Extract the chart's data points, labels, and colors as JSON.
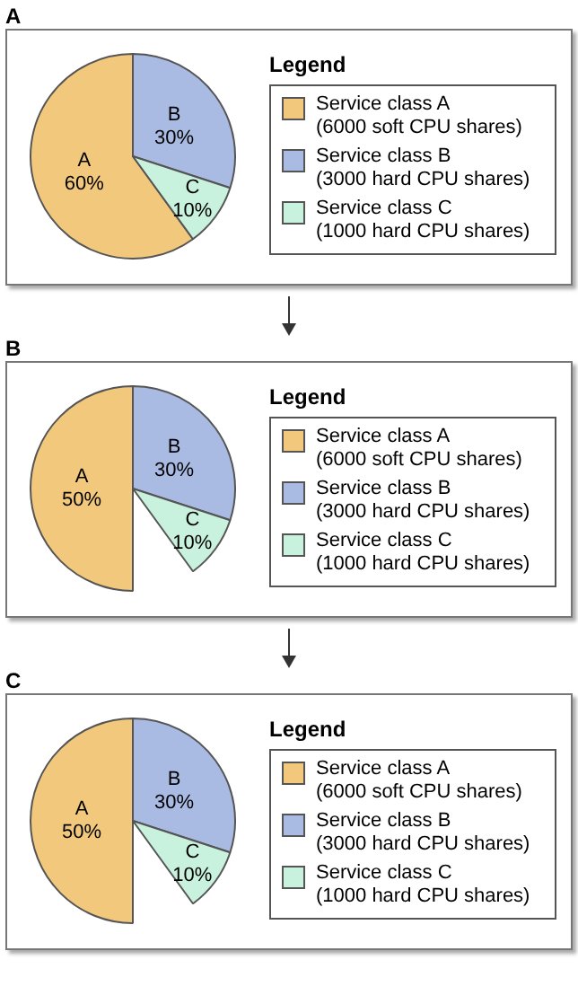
{
  "chart_data": [
    {
      "type": "pie",
      "title": "A",
      "legend_title": "Legend",
      "legend": "right",
      "categories": [
        "Service class A\n(6000 soft CPU shares)",
        "Service class B\n(3000 hard CPU shares)",
        "Service class C\n(1000 hard CPU shares)"
      ],
      "values": [
        60,
        30,
        10
      ],
      "colors": [
        "#f2c97c",
        "#a9bae3",
        "#c8f2de"
      ],
      "value_labels": [
        "A 60%",
        "B 30%",
        "C 10%"
      ]
    },
    {
      "type": "pie",
      "title": "B",
      "legend_title": "Legend",
      "legend": "right",
      "categories": [
        "Service class A\n(6000 soft CPU shares)",
        "Service class B\n(3000 hard CPU shares)",
        "Service class C\n(1000 hard CPU shares)"
      ],
      "values": [
        50,
        30,
        10
      ],
      "colors": [
        "#f2c97c",
        "#a9bae3",
        "#c8f2de"
      ],
      "value_labels": [
        "A 50%",
        "B 30%",
        "C 10%"
      ]
    },
    {
      "type": "pie",
      "title": "C",
      "legend_title": "Legend",
      "legend": "right",
      "categories": [
        "Service class A\n(6000 soft CPU shares)",
        "Service class B\n(3000 hard CPU shares)",
        "Service class C\n(1000 hard CPU shares)"
      ],
      "values": [
        50,
        30,
        10
      ],
      "colors": [
        "#f2c97c",
        "#a9bae3",
        "#c8f2de"
      ],
      "value_labels": [
        "A 50%",
        "B 30%",
        "C 10%"
      ]
    }
  ]
}
